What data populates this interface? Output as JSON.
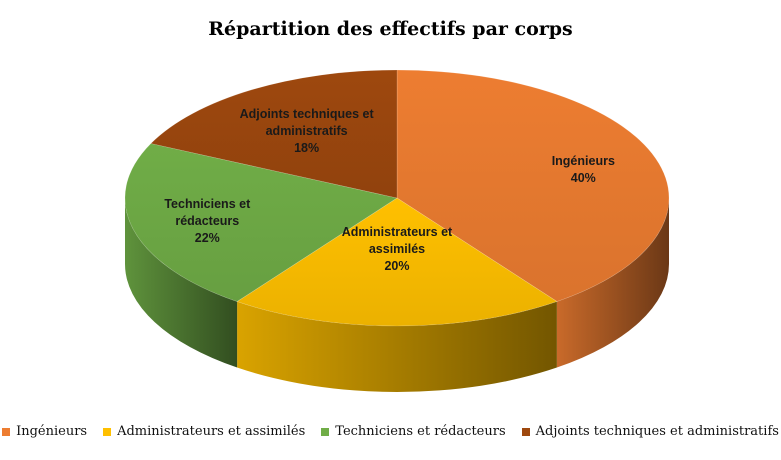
{
  "chart_data": {
    "type": "pie",
    "title": "Répartition des effectifs par corps",
    "categories": [
      "Ingénieurs",
      "Administrateurs et assimilés",
      "Techniciens et rédacteurs",
      "Adjoints techniques et administratifs"
    ],
    "values": [
      40,
      20,
      22,
      18
    ],
    "label_lines": [
      [
        "Ingénieurs",
        "40%"
      ],
      [
        "Administrateurs et",
        "assimilés",
        "20%"
      ],
      [
        "Techniciens et",
        "rédacteurs",
        "22%"
      ],
      [
        "Adjoints techniques et",
        "administratifs",
        "18%"
      ]
    ],
    "colors": [
      "#ED7D31",
      "#FFC000",
      "#70AD47",
      "#9E480E"
    ],
    "legend_position": "bottom",
    "three_d": true
  }
}
